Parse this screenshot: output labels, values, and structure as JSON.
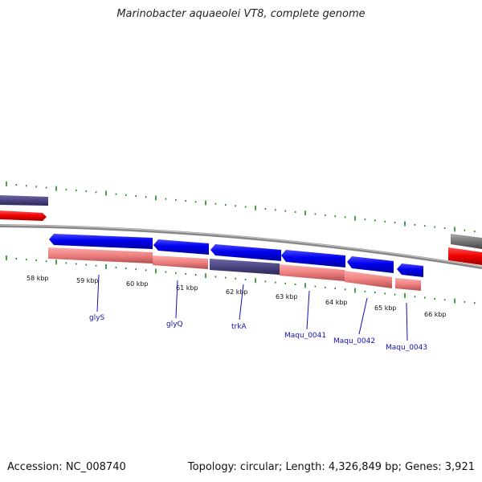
{
  "title": "Marinobacter aquaeolei VT8, complete genome",
  "ruler": {
    "labels": [
      "58 kbp",
      "59 kbp",
      "60 kbp",
      "61 kbp",
      "62 kbp",
      "63 kbp",
      "64 kbp",
      "65 kbp",
      "66 kbp"
    ]
  },
  "genes": [
    {
      "name": "glyS"
    },
    {
      "name": "glyQ"
    },
    {
      "name": "trkA"
    },
    {
      "name": "Maqu_0041"
    },
    {
      "name": "Maqu_0042"
    },
    {
      "name": "Maqu_0043"
    }
  ],
  "footer": {
    "accession": "Accession: NC_008740",
    "summary": "Topology: circular; Length: 4,326,849 bp; Genes: 3,921"
  },
  "colors": {
    "forward_cds": "#0000dd",
    "gene_salmon": "#f08080",
    "gene_purple": "#4a4580",
    "rrna_red": "#ee0000",
    "backbone": "#888888",
    "ticks": "#1e8a1e",
    "label_blue": "#1010bb"
  }
}
